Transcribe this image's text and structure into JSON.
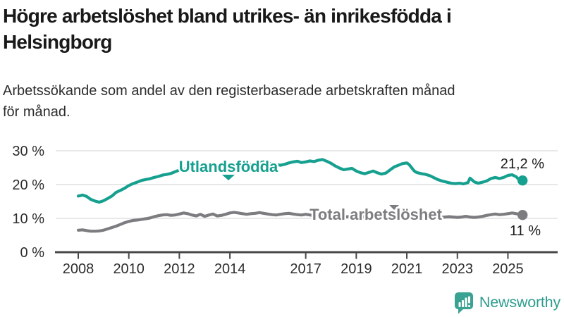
{
  "header": {
    "title_line1": "Högre arbetslöshet bland utrikes- än inrikesfödda i",
    "title_line2": "Helsingborg",
    "subtitle_line1": "Arbetssökande som andel av den registerbaserade arbetskraften månad",
    "subtitle_line2": "för månad."
  },
  "chart_data": {
    "type": "line",
    "title": "Högre arbetslöshet bland utrikes- än inrikesfödda i Helsingborg",
    "subtitle": "Arbetssökande som andel av den registerbaserade arbetskraften månad för månad.",
    "unit": "%",
    "ylim": [
      0,
      30
    ],
    "xlim": [
      2007.1,
      2026.1
    ],
    "grid": "horizontal",
    "y_ticks": [
      {
        "value": 0,
        "label": "0 %"
      },
      {
        "value": 10,
        "label": "10 %"
      },
      {
        "value": 20,
        "label": "20 %"
      },
      {
        "value": 30,
        "label": "30 %"
      }
    ],
    "x_ticks": [
      {
        "year": 2008,
        "label": "2008"
      },
      {
        "year": 2010,
        "label": "2010"
      },
      {
        "year": 2012,
        "label": "2012"
      },
      {
        "year": 2014,
        "label": "2014"
      },
      {
        "year": 2017,
        "label": "2017"
      },
      {
        "year": 2019,
        "label": "2019"
      },
      {
        "year": 2021,
        "label": "2021"
      },
      {
        "year": 2023,
        "label": "2023"
      },
      {
        "year": 2025,
        "label": "2025"
      }
    ],
    "series": [
      {
        "name": "Utlandsfödda",
        "color": "#16a08f",
        "end_value": 21.2,
        "end_label": "21,2 %",
        "points": [
          [
            2008.0,
            16.6
          ],
          [
            2008.17,
            16.9
          ],
          [
            2008.33,
            16.5
          ],
          [
            2008.5,
            15.6
          ],
          [
            2008.67,
            15.1
          ],
          [
            2008.83,
            14.8
          ],
          [
            2009.0,
            15.2
          ],
          [
            2009.17,
            15.9
          ],
          [
            2009.33,
            16.6
          ],
          [
            2009.5,
            17.7
          ],
          [
            2009.67,
            18.3
          ],
          [
            2009.83,
            18.9
          ],
          [
            2010.0,
            19.7
          ],
          [
            2010.17,
            20.3
          ],
          [
            2010.33,
            20.7
          ],
          [
            2010.5,
            21.2
          ],
          [
            2010.67,
            21.5
          ],
          [
            2010.83,
            21.7
          ],
          [
            2011.0,
            22.1
          ],
          [
            2011.17,
            22.4
          ],
          [
            2011.33,
            22.8
          ],
          [
            2011.5,
            23.0
          ],
          [
            2011.67,
            23.3
          ],
          [
            2011.83,
            23.8
          ],
          [
            2012.0,
            24.3
          ],
          [
            2012.17,
            24.6
          ],
          [
            2012.33,
            24.4
          ],
          [
            2012.5,
            24.8
          ],
          [
            2012.67,
            25.0
          ],
          [
            2012.83,
            24.8
          ],
          [
            2013.0,
            25.2
          ],
          [
            2013.17,
            25.4
          ],
          [
            2013.33,
            25.2
          ],
          [
            2013.5,
            25.5
          ],
          [
            2013.67,
            25.7
          ],
          [
            2013.83,
            25.5
          ],
          [
            2014.0,
            25.9
          ],
          [
            2014.17,
            26.1
          ],
          [
            2014.33,
            26.3
          ],
          [
            2014.5,
            26.0
          ],
          [
            2014.67,
            25.8
          ],
          [
            2014.83,
            26.0
          ],
          [
            2015.0,
            26.2
          ],
          [
            2015.17,
            26.5
          ],
          [
            2015.33,
            26.7
          ],
          [
            2015.5,
            26.4
          ],
          [
            2015.67,
            26.1
          ],
          [
            2015.83,
            25.9
          ],
          [
            2016.0,
            25.7
          ],
          [
            2016.17,
            26.0
          ],
          [
            2016.33,
            26.4
          ],
          [
            2016.5,
            26.7
          ],
          [
            2016.67,
            26.9
          ],
          [
            2016.83,
            26.5
          ],
          [
            2017.0,
            26.7
          ],
          [
            2017.17,
            27.0
          ],
          [
            2017.33,
            26.8
          ],
          [
            2017.5,
            27.2
          ],
          [
            2017.67,
            27.4
          ],
          [
            2017.83,
            26.9
          ],
          [
            2018.0,
            26.3
          ],
          [
            2018.17,
            25.5
          ],
          [
            2018.33,
            24.9
          ],
          [
            2018.5,
            24.4
          ],
          [
            2018.67,
            24.6
          ],
          [
            2018.83,
            24.8
          ],
          [
            2019.0,
            24.0
          ],
          [
            2019.17,
            23.5
          ],
          [
            2019.33,
            23.2
          ],
          [
            2019.5,
            23.6
          ],
          [
            2019.67,
            24.0
          ],
          [
            2019.83,
            23.5
          ],
          [
            2020.0,
            23.1
          ],
          [
            2020.17,
            23.4
          ],
          [
            2020.33,
            24.3
          ],
          [
            2020.5,
            25.2
          ],
          [
            2020.67,
            25.7
          ],
          [
            2020.83,
            26.2
          ],
          [
            2021.0,
            26.4
          ],
          [
            2021.08,
            26.0
          ],
          [
            2021.17,
            25.2
          ],
          [
            2021.25,
            24.4
          ],
          [
            2021.33,
            23.8
          ],
          [
            2021.42,
            23.5
          ],
          [
            2021.58,
            23.2
          ],
          [
            2021.75,
            23.0
          ],
          [
            2021.92,
            22.6
          ],
          [
            2022.08,
            22.0
          ],
          [
            2022.25,
            21.4
          ],
          [
            2022.42,
            21.0
          ],
          [
            2022.58,
            20.7
          ],
          [
            2022.75,
            20.4
          ],
          [
            2022.92,
            20.3
          ],
          [
            2023.08,
            20.4
          ],
          [
            2023.25,
            20.2
          ],
          [
            2023.42,
            20.6
          ],
          [
            2023.5,
            21.9
          ],
          [
            2023.67,
            20.8
          ],
          [
            2023.83,
            20.4
          ],
          [
            2024.0,
            20.7
          ],
          [
            2024.17,
            21.1
          ],
          [
            2024.33,
            21.8
          ],
          [
            2024.5,
            22.1
          ],
          [
            2024.67,
            21.8
          ],
          [
            2024.83,
            22.1
          ],
          [
            2025.0,
            22.7
          ],
          [
            2025.17,
            22.9
          ],
          [
            2025.33,
            22.3
          ],
          [
            2025.42,
            21.6
          ],
          [
            2025.58,
            21.2
          ]
        ]
      },
      {
        "name": "Total arbetslöshet",
        "color": "#7c7c81",
        "end_value": 11,
        "end_label": "11 %",
        "points": [
          [
            2008.0,
            6.5
          ],
          [
            2008.17,
            6.6
          ],
          [
            2008.33,
            6.4
          ],
          [
            2008.5,
            6.2
          ],
          [
            2008.67,
            6.2
          ],
          [
            2008.83,
            6.3
          ],
          [
            2009.0,
            6.5
          ],
          [
            2009.17,
            6.9
          ],
          [
            2009.33,
            7.3
          ],
          [
            2009.5,
            7.7
          ],
          [
            2009.67,
            8.2
          ],
          [
            2009.83,
            8.7
          ],
          [
            2010.0,
            9.1
          ],
          [
            2010.17,
            9.4
          ],
          [
            2010.33,
            9.5
          ],
          [
            2010.5,
            9.7
          ],
          [
            2010.67,
            9.9
          ],
          [
            2010.83,
            10.1
          ],
          [
            2011.0,
            10.5
          ],
          [
            2011.17,
            10.8
          ],
          [
            2011.33,
            11.0
          ],
          [
            2011.5,
            11.1
          ],
          [
            2011.67,
            10.9
          ],
          [
            2011.83,
            11.0
          ],
          [
            2012.0,
            11.3
          ],
          [
            2012.17,
            11.6
          ],
          [
            2012.33,
            11.4
          ],
          [
            2012.5,
            11.0
          ],
          [
            2012.67,
            10.7
          ],
          [
            2012.83,
            11.2
          ],
          [
            2013.0,
            10.6
          ],
          [
            2013.17,
            11.0
          ],
          [
            2013.33,
            11.3
          ],
          [
            2013.5,
            10.7
          ],
          [
            2013.67,
            10.9
          ],
          [
            2013.83,
            11.2
          ],
          [
            2014.0,
            11.6
          ],
          [
            2014.17,
            11.8
          ],
          [
            2014.33,
            11.6
          ],
          [
            2014.5,
            11.4
          ],
          [
            2014.67,
            11.2
          ],
          [
            2014.83,
            11.4
          ],
          [
            2015.0,
            11.5
          ],
          [
            2015.17,
            11.7
          ],
          [
            2015.33,
            11.5
          ],
          [
            2015.5,
            11.3
          ],
          [
            2015.67,
            11.1
          ],
          [
            2015.83,
            11.0
          ],
          [
            2016.0,
            11.2
          ],
          [
            2016.17,
            11.4
          ],
          [
            2016.33,
            11.5
          ],
          [
            2016.5,
            11.3
          ],
          [
            2016.67,
            11.1
          ],
          [
            2016.83,
            11.0
          ],
          [
            2017.0,
            11.2
          ],
          [
            2017.17,
            11.0
          ],
          [
            2017.33,
            10.8
          ],
          [
            2017.5,
            10.9
          ],
          [
            2017.67,
            10.7
          ],
          [
            2017.83,
            10.5
          ],
          [
            2018.0,
            10.6
          ],
          [
            2018.17,
            10.8
          ],
          [
            2018.33,
            10.6
          ],
          [
            2018.5,
            10.4
          ],
          [
            2018.67,
            10.5
          ],
          [
            2018.83,
            10.3
          ],
          [
            2019.0,
            10.2
          ],
          [
            2019.17,
            10.4
          ],
          [
            2019.33,
            10.5
          ],
          [
            2019.5,
            10.3
          ],
          [
            2019.67,
            10.2
          ],
          [
            2019.83,
            10.4
          ],
          [
            2020.0,
            10.6
          ],
          [
            2020.17,
            11.2
          ],
          [
            2020.33,
            11.7
          ],
          [
            2020.5,
            11.9
          ],
          [
            2020.67,
            11.8
          ],
          [
            2020.83,
            11.6
          ],
          [
            2021.0,
            11.5
          ],
          [
            2021.17,
            11.3
          ],
          [
            2021.33,
            11.1
          ],
          [
            2021.5,
            10.9
          ],
          [
            2021.67,
            10.7
          ],
          [
            2021.83,
            10.6
          ],
          [
            2022.0,
            10.5
          ],
          [
            2022.17,
            10.4
          ],
          [
            2022.33,
            10.3
          ],
          [
            2022.5,
            10.4
          ],
          [
            2022.67,
            10.5
          ],
          [
            2022.83,
            10.4
          ],
          [
            2023.0,
            10.3
          ],
          [
            2023.17,
            10.4
          ],
          [
            2023.33,
            10.6
          ],
          [
            2023.5,
            10.4
          ],
          [
            2023.67,
            10.3
          ],
          [
            2023.83,
            10.4
          ],
          [
            2024.0,
            10.6
          ],
          [
            2024.17,
            10.9
          ],
          [
            2024.33,
            11.1
          ],
          [
            2024.5,
            11.3
          ],
          [
            2024.67,
            11.1
          ],
          [
            2024.83,
            11.2
          ],
          [
            2025.0,
            11.4
          ],
          [
            2025.17,
            11.6
          ],
          [
            2025.33,
            11.4
          ],
          [
            2025.42,
            11.2
          ],
          [
            2025.58,
            11.0
          ]
        ]
      }
    ]
  },
  "branding": {
    "logo_text": "Newsworthy",
    "logo_color": "#2e9d8e",
    "logo_icon_color": "#3aa293",
    "logo_icon": "bar-chart-speech-bubble-icon"
  }
}
